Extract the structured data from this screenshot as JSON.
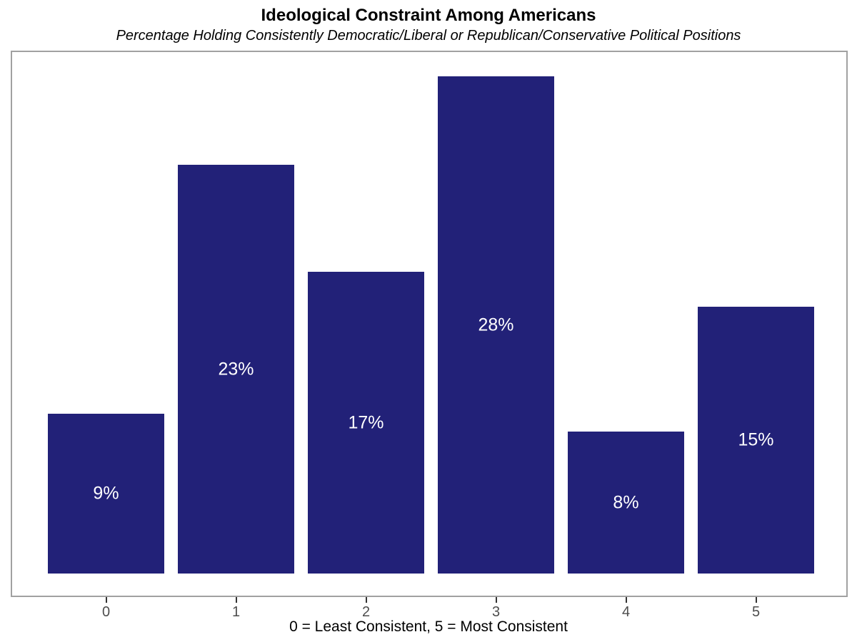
{
  "header": {
    "title": "Ideological Constraint Among Americans",
    "subtitle": "Percentage Holding Consistently Democratic/Liberal or Republican/Conservative Political Positions"
  },
  "chart_data": {
    "type": "bar",
    "title": "Ideological Constraint Among Americans",
    "subtitle": "Percentage Holding Consistently Democratic/Liberal or Republican/Conservative Political Positions",
    "categories": [
      "0",
      "1",
      "2",
      "3",
      "4",
      "5"
    ],
    "values": [
      9,
      23,
      17,
      28,
      8,
      15
    ],
    "bar_labels": [
      "9%",
      "23%",
      "17%",
      "28%",
      "8%",
      "15%"
    ],
    "xlabel": "0 = Least Consistent, 5 = Most Consistent",
    "ylabel": "",
    "ylim": [
      0,
      28
    ],
    "grid": false,
    "legend": false,
    "colors": {
      "bar": "#222178",
      "bar_label_text": "#ffffff",
      "axis_tick_label": "#4d4d4d",
      "axis_tick_mark": "#333333",
      "panel_border": "#a1a1a1",
      "background": "#ffffff"
    }
  }
}
